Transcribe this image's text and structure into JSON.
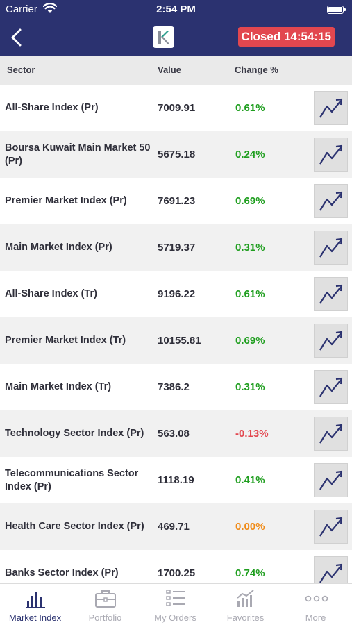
{
  "status_bar": {
    "carrier": "Carrier",
    "time": "2:54 PM"
  },
  "nav": {
    "market_status": "Closed 14:54:15",
    "status_color": "#e2474f"
  },
  "table": {
    "headers": {
      "sector": "Sector",
      "value": "Value",
      "change": "Change %"
    },
    "rows": [
      {
        "name": "All-Share Index (Pr)",
        "value": "7009.91",
        "change": "0.61%",
        "direction": "up"
      },
      {
        "name": "Boursa Kuwait Main Market 50 (Pr)",
        "value": "5675.18",
        "change": "0.24%",
        "direction": "up"
      },
      {
        "name": "Premier Market Index  (Pr)",
        "value": "7691.23",
        "change": "0.69%",
        "direction": "up"
      },
      {
        "name": "Main Market Index (Pr)",
        "value": "5719.37",
        "change": "0.31%",
        "direction": "up"
      },
      {
        "name": "All-Share Index  (Tr)",
        "value": "9196.22",
        "change": "0.61%",
        "direction": "up"
      },
      {
        "name": "Premier Market Index (Tr)",
        "value": "10155.81",
        "change": "0.69%",
        "direction": "up"
      },
      {
        "name": "Main Market Index (Tr)",
        "value": "7386.2",
        "change": "0.31%",
        "direction": "up"
      },
      {
        "name": "Technology Sector Index (Pr)",
        "value": "563.08",
        "change": "-0.13%",
        "direction": "down"
      },
      {
        "name": "Telecommunications Sector Index (Pr)",
        "value": "1118.19",
        "change": "0.41%",
        "direction": "up"
      },
      {
        "name": "Health Care Sector Index (Pr)",
        "value": "469.71",
        "change": "0.00%",
        "direction": "flat"
      },
      {
        "name": "Banks Sector Index (Pr)",
        "value": "1700.25",
        "change": "0.74%",
        "direction": "up"
      }
    ],
    "chart_icon": "trend-chart-icon"
  },
  "colors": {
    "navy": "#2b3270",
    "up": "#1f9e1f",
    "down": "#e2474f",
    "flat": "#f08a16"
  },
  "tabs": [
    {
      "label": "Market Index",
      "icon": "bar-chart-icon",
      "active": true
    },
    {
      "label": "Portfolio",
      "icon": "briefcase-icon",
      "active": false
    },
    {
      "label": "My Orders",
      "icon": "list-icon",
      "active": false
    },
    {
      "label": "Favorites",
      "icon": "favorites-chart-icon",
      "active": false
    },
    {
      "label": "More",
      "icon": "more-dots-icon",
      "active": false
    }
  ]
}
